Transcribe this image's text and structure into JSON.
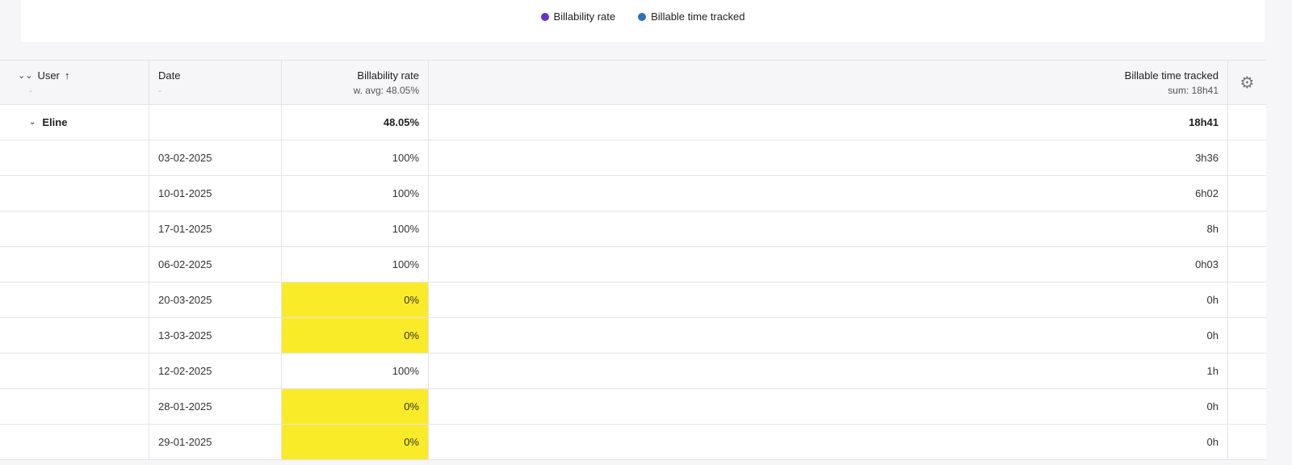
{
  "legend": {
    "items": [
      {
        "label": "Billability rate",
        "color": "#6b2fcc"
      },
      {
        "label": "Billable time tracked",
        "color": "#2a6fbe"
      }
    ]
  },
  "table": {
    "headers": {
      "user": {
        "label": "User",
        "sub": "-"
      },
      "date": {
        "label": "Date",
        "sub": "-"
      },
      "rate": {
        "label": "Billability rate",
        "sub": "w. avg: 48.05%"
      },
      "time": {
        "label": "Billable time tracked",
        "sub": "sum: 18h41"
      }
    },
    "group": {
      "user": "Eline",
      "rate": "48.05%",
      "time": "18h41"
    },
    "rows": [
      {
        "date": "03-02-2025",
        "rate": "100%",
        "time": "3h36",
        "highlight": false
      },
      {
        "date": "10-01-2025",
        "rate": "100%",
        "time": "6h02",
        "highlight": false
      },
      {
        "date": "17-01-2025",
        "rate": "100%",
        "time": "8h",
        "highlight": false
      },
      {
        "date": "06-02-2025",
        "rate": "100%",
        "time": "0h03",
        "highlight": false
      },
      {
        "date": "20-03-2025",
        "rate": "0%",
        "time": "0h",
        "highlight": true
      },
      {
        "date": "13-03-2025",
        "rate": "0%",
        "time": "0h",
        "highlight": true
      },
      {
        "date": "12-02-2025",
        "rate": "100%",
        "time": "1h",
        "highlight": false
      },
      {
        "date": "28-01-2025",
        "rate": "0%",
        "time": "0h",
        "highlight": true
      },
      {
        "date": "29-01-2025",
        "rate": "0%",
        "time": "0h",
        "highlight": true
      }
    ],
    "highlight_color": "#faeb29"
  },
  "icons": {
    "expand_all": "double-chevron-down-icon",
    "sort": "arrow-up-icon",
    "collapse": "chevron-down-icon",
    "settings": "gear-icon"
  }
}
